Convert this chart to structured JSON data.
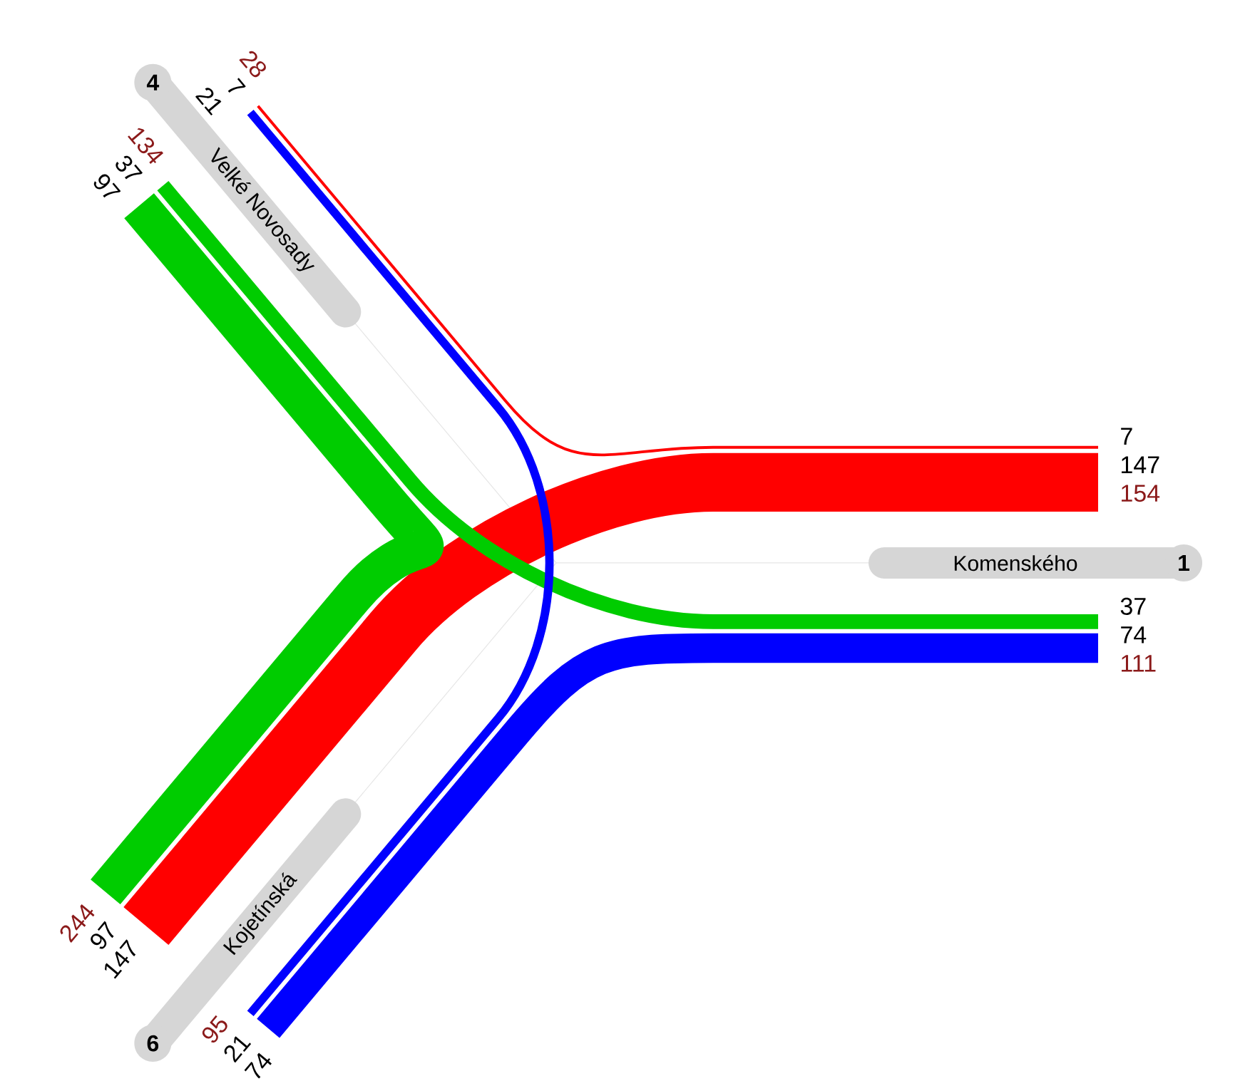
{
  "chart_data": {
    "type": "other",
    "categories": [
      "Komenského",
      "Velké Novosady",
      "Kojetínská"
    ],
    "series": [
      {
        "color": "#ff0000",
        "values": [
          null,
          7,
          147
        ]
      },
      {
        "color": "#00cc00",
        "values": [
          37,
          null,
          97
        ]
      },
      {
        "color": "#0000ff",
        "values": [
          74,
          21,
          null
        ]
      }
    ],
    "totals": [
      "154",
      "111",
      "134",
      "28",
      "95",
      "244"
    ],
    "annotations": [
      "1",
      "4",
      "6",
      "7",
      "147",
      "37",
      "97",
      "74",
      "21"
    ],
    "data_labels": true
  }
}
